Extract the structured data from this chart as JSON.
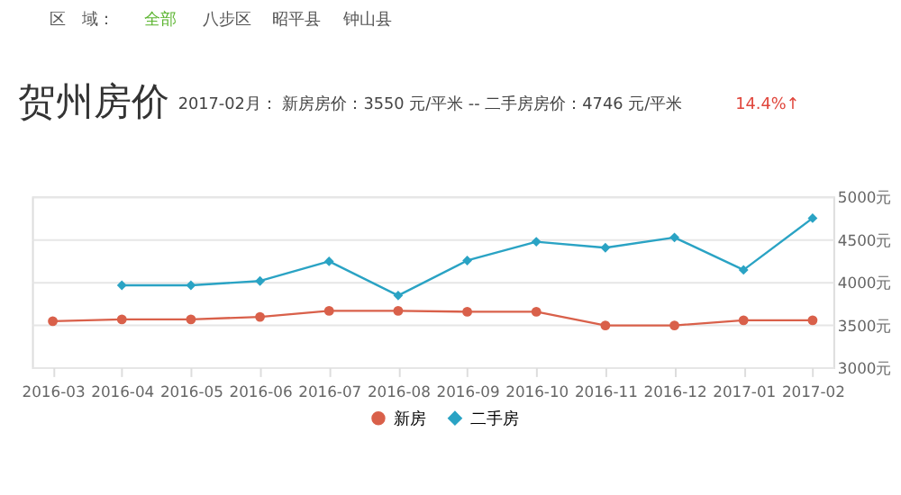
{
  "chart_data": {
    "type": "line",
    "title": "贺州房价",
    "subtitle": "2017-02月：  新房房价：3550 元/平米  --  二手房房价：4746 元/平米",
    "annotations": [
      "区　域：",
      "全部",
      "八步区",
      "昭平县",
      "钟山县",
      "14.4%↑"
    ],
    "categories": [
      "2016-03",
      "2016-04",
      "2016-05",
      "2016-06",
      "2016-07",
      "2016-08",
      "2016-09",
      "2016-10",
      "2016-11",
      "2016-12",
      "2017-01",
      "2017-02"
    ],
    "series": [
      {
        "name": "新房",
        "color": "#d9604a",
        "marker": "circle",
        "values": [
          3540,
          3560,
          3560,
          3590,
          3660,
          3660,
          3650,
          3650,
          3490,
          3490,
          3550,
          3550
        ]
      },
      {
        "name": "二手房",
        "color": "#2aa3c4",
        "marker": "diamond",
        "values": [
          null,
          3960,
          3960,
          4010,
          4240,
          3840,
          4250,
          4470,
          4400,
          4520,
          4140,
          4746
        ]
      }
    ],
    "ylim": [
      3000,
      5000
    ],
    "yticks": [
      {
        "value": 3000,
        "label": "3000元"
      },
      {
        "value": 3500,
        "label": "3500元"
      },
      {
        "value": 4000,
        "label": "4000元"
      },
      {
        "value": 4500,
        "label": "4500元"
      },
      {
        "value": 5000,
        "label": "5000元"
      }
    ],
    "grid": "y",
    "legend": "bottom",
    "line_style": "solid"
  }
}
